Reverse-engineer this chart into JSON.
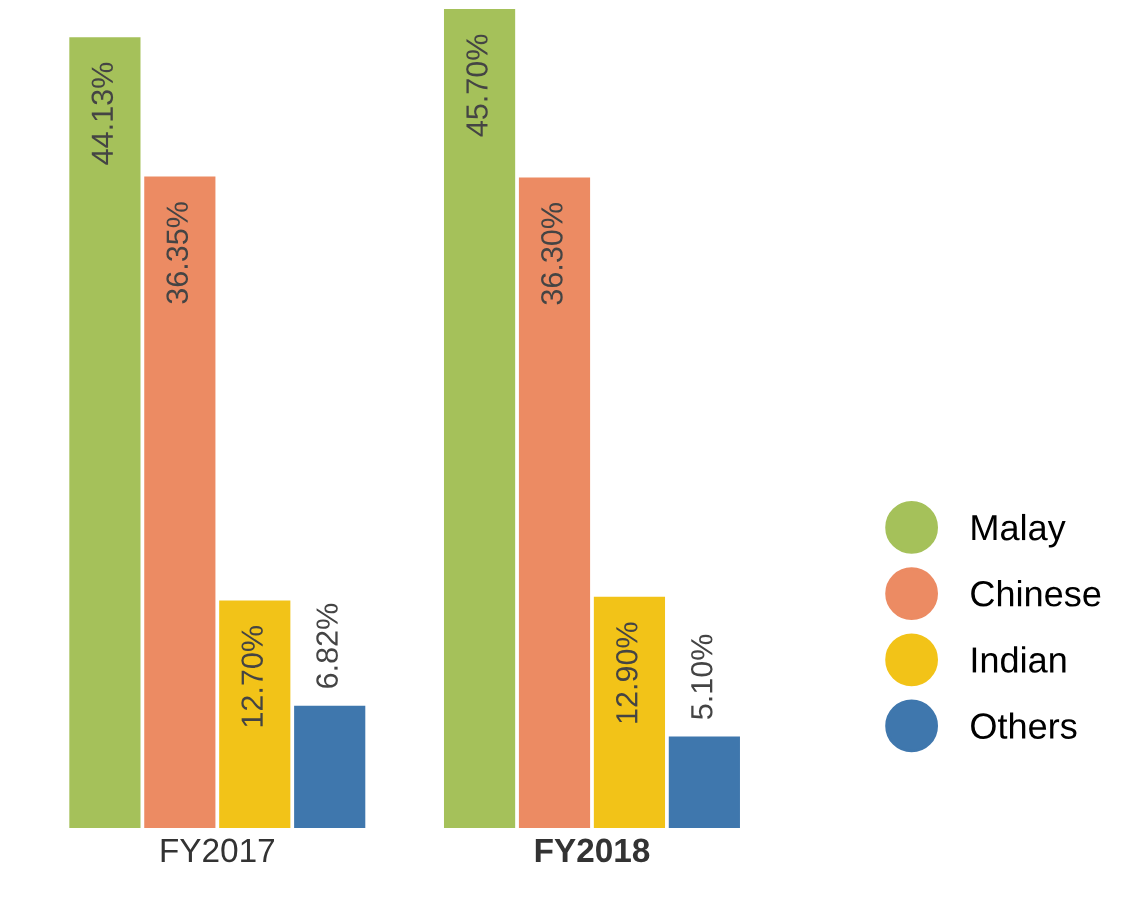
{
  "chart_data": {
    "type": "bar",
    "categories": [
      "FY2017",
      "FY2018"
    ],
    "series": [
      {
        "name": "Malay",
        "color": "#a5c15a",
        "values": [
          44.13,
          45.7
        ],
        "value_labels": [
          "44.13%",
          "45.70%"
        ]
      },
      {
        "name": "Chinese",
        "color": "#ec8b63",
        "values": [
          36.35,
          36.3
        ],
        "value_labels": [
          "36.35%",
          "36.30%"
        ]
      },
      {
        "name": "Indian",
        "color": "#f2c318",
        "values": [
          12.7,
          12.9
        ],
        "value_labels": [
          "12.70%",
          "12.90%"
        ]
      },
      {
        "name": "Others",
        "color": "#3f77ad",
        "values": [
          6.82,
          5.1
        ],
        "value_labels": [
          "6.82%",
          "5.10%"
        ]
      }
    ],
    "legend": "right",
    "marker": "circle",
    "grid": false
  }
}
